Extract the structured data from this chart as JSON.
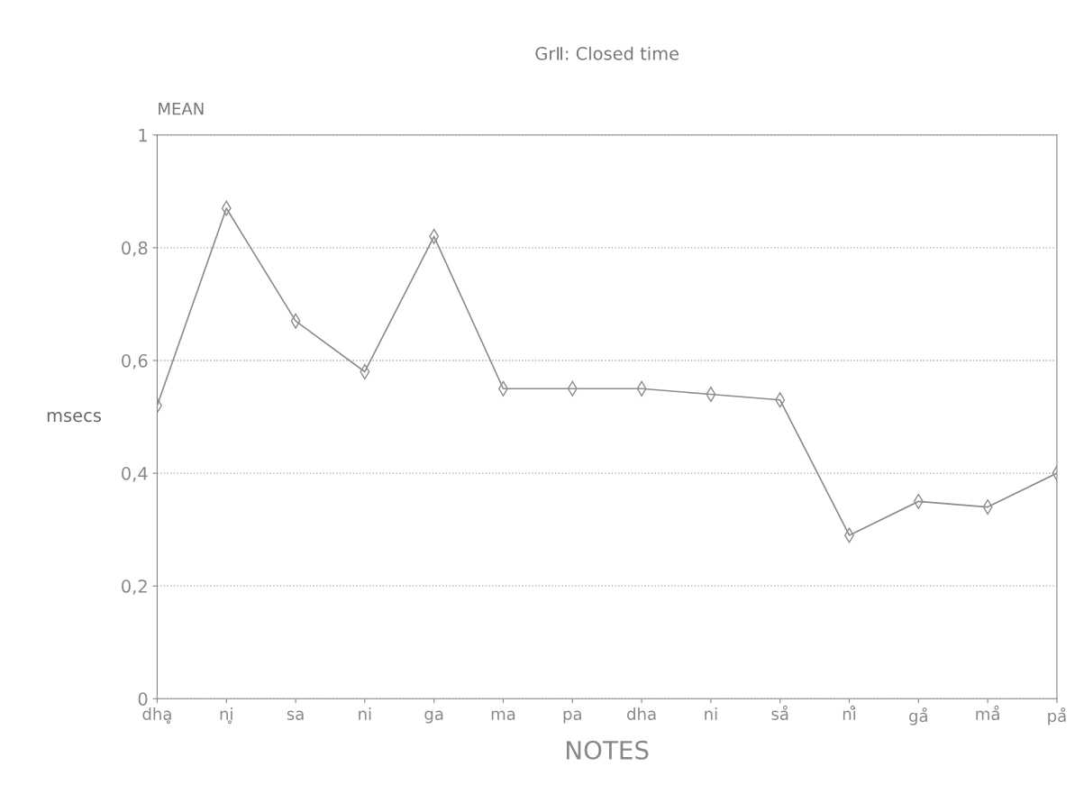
{
  "chart_data": {
    "type": "line",
    "title": "GrⅡ: Closed time",
    "xlabel": "NOTES",
    "ylabel": "msecs",
    "annotations": [
      "MEAN"
    ],
    "categories": [
      "dhḁ",
      "ni̥",
      "sa",
      "ni",
      "ga",
      "ma",
      "pa",
      "dha",
      "ni",
      "så",
      "ni̊",
      "gå",
      "må",
      "på"
    ],
    "series": [
      {
        "color": "#8c8c8c",
        "values": [
          0.52,
          0.87,
          0.67,
          0.58,
          0.82,
          0.55,
          0.55,
          0.55,
          0.54,
          0.53,
          0.29,
          0.35,
          0.34,
          0.4
        ]
      }
    ],
    "ylim": [
      0,
      1
    ],
    "yticks": [
      0,
      {
        "value": 0.2,
        "label": "0,2"
      },
      {
        "value": 0.4,
        "label": "0,4"
      },
      {
        "value": 0.6,
        "label": "0,6"
      },
      {
        "value": 0.8,
        "label": "0,8"
      },
      1
    ],
    "grid": "y",
    "marker": "diamond",
    "line_style": "solid",
    "legend": false
  }
}
